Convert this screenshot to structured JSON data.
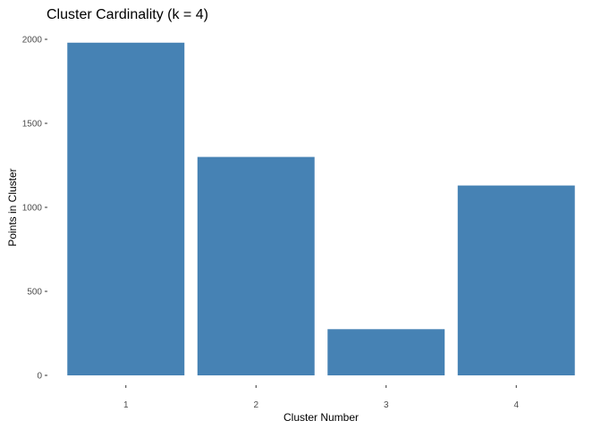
{
  "chart_data": {
    "type": "bar",
    "title": "Cluster Cardinality (k = 4)",
    "xlabel": "Cluster Number",
    "ylabel": "Points in Cluster",
    "categories": [
      "1",
      "2",
      "3",
      "4"
    ],
    "values": [
      1980,
      1300,
      275,
      1130
    ],
    "ylim": [
      0,
      2000
    ],
    "yticks": [
      0,
      500,
      1000,
      1500,
      2000
    ],
    "grid": false,
    "legend": "none",
    "colors": {
      "bar": "#4682B4",
      "tick_text": "#4d4d4d",
      "text": "#000000"
    }
  }
}
